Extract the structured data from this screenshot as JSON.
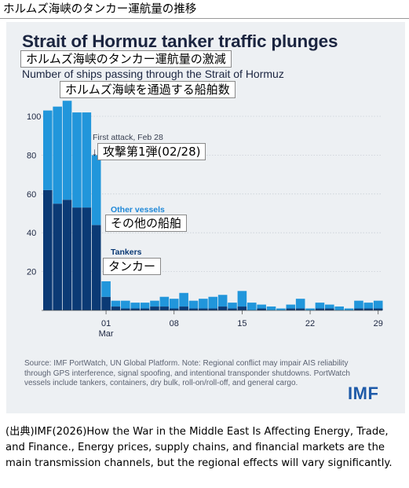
{
  "header": {
    "text": "ホルムズ海峡のタンカー運航量の推移"
  },
  "chart_title": "Strait of Hormuz tanker traffic plunges",
  "chart_title_jp": "ホルムズ海峡のタンカー運航量の激減",
  "subtitle": "Number of ships passing through the Strait of Hormuz",
  "subtitle_jp": "ホルムズ海峡を通過する船舶数",
  "annotations": {
    "first_attack": "First attack, Feb 28",
    "first_attack_jp": "攻撃第1弾(02/28)",
    "other_vessels": "Other vessels",
    "other_vessels_jp": "その他の船舶",
    "tankers": "Tankers",
    "tankers_jp": "タンカー",
    "arrow": "↓"
  },
  "source_note": "Source: IMF PortWatch, UN Global Platform. Note: Regional conflict may impair AIS reliability through GPS interference, signal spoofing, and intentional transponder shutdowns. PortWatch vessels include tankers, containers, dry bulk, roll-on/roll-off, and general cargo.",
  "logo": "IMF",
  "citation": "(出典)IMF(2026)How the War in the Middle East Is Affecting Energy, Trade, and Finance., Energy prices, supply chains, and financial markets are the main transmission channels, but the regional effects will vary significantly.",
  "colors": {
    "tankers": "#0b3a75",
    "other": "#2196db",
    "panel": "#edf0f3",
    "title": "#1b2540",
    "annotation_blue": "#1e88d8",
    "axis_text": "#1b2540"
  },
  "chart_data": {
    "type": "bar",
    "stacked": true,
    "x_tick_labels": [
      "01",
      "08",
      "15",
      "22",
      "29"
    ],
    "x_tick_sublabel": "Mar",
    "y_ticks": [
      20,
      40,
      60,
      80,
      100
    ],
    "ylim": [
      0,
      112
    ],
    "grid": true,
    "categories": [
      "Feb 23",
      "Feb 24",
      "Feb 25",
      "Feb 26",
      "Feb 27",
      "Feb 28",
      "Mar 01",
      "Mar 02",
      "Mar 03",
      "Mar 04",
      "Mar 05",
      "Mar 06",
      "Mar 07",
      "Mar 08",
      "Mar 09",
      "Mar 10",
      "Mar 11",
      "Mar 12",
      "Mar 13",
      "Mar 14",
      "Mar 15",
      "Mar 16",
      "Mar 17",
      "Mar 18",
      "Mar 19",
      "Mar 20",
      "Mar 21",
      "Mar 22",
      "Mar 23",
      "Mar 24",
      "Mar 25",
      "Mar 26",
      "Mar 27",
      "Mar 28",
      "Mar 29"
    ],
    "series": [
      {
        "name": "Tankers",
        "values": [
          62,
          55,
          57,
          53,
          53,
          44,
          7,
          2,
          1,
          1,
          1,
          2,
          2,
          1,
          2,
          1,
          1,
          1,
          2,
          1,
          2,
          0,
          1,
          0,
          0,
          1,
          1,
          0,
          1,
          1,
          0,
          0,
          1,
          1,
          1
        ]
      },
      {
        "name": "Other vessels",
        "values": [
          41,
          50,
          51,
          49,
          49,
          36,
          8,
          3,
          4,
          3,
          3,
          3,
          5,
          5,
          7,
          4,
          5,
          6,
          6,
          3,
          8,
          4,
          2,
          2,
          1,
          2,
          5,
          1,
          3,
          2,
          2,
          1,
          4,
          3,
          4
        ]
      }
    ]
  }
}
